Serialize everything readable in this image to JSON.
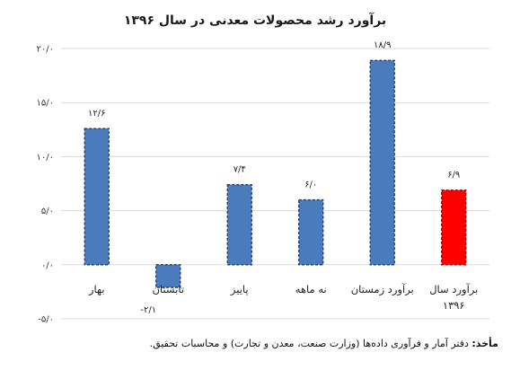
{
  "chart_data": {
    "type": "bar",
    "title": "برآورد رشد محصولات معدنی در سال ۱۳۹۶",
    "categories": [
      "بهار",
      "تابستان",
      "پاییز",
      "نه ماهه",
      "برآورد زمستان",
      "برآورد سال ۱۳۹۶"
    ],
    "values": [
      12.6,
      -2.1,
      7.4,
      6.0,
      18.9,
      6.9
    ],
    "data_labels": [
      "۱۲/۶",
      "-۲/۱",
      "۷/۴",
      "۶/۰",
      "۱۸/۹",
      "۶/۹"
    ],
    "ylim": [
      -5,
      20
    ],
    "yticks": [
      -5,
      0,
      5,
      10,
      15,
      20
    ],
    "ytick_labels": [
      "-۵/۰",
      "۰/۰",
      "۵/۰",
      "۱۰/۰",
      "۱۵/۰",
      "۲۰/۰"
    ],
    "grid": true,
    "legend": "none",
    "colors": {
      "bar": "#4a7cbd",
      "highlight": "#ff0000",
      "bar_border": "#1f3864",
      "highlight_border": "#8b0000",
      "grid": "#d9d9d9"
    },
    "highlight_index": 5
  },
  "source": {
    "label": "مأخذ:",
    "text": "دفتر آمار و فرآوری داده‌ها (وزارت صنعت، معدن و تجارت) و محاسبات تحقیق."
  }
}
